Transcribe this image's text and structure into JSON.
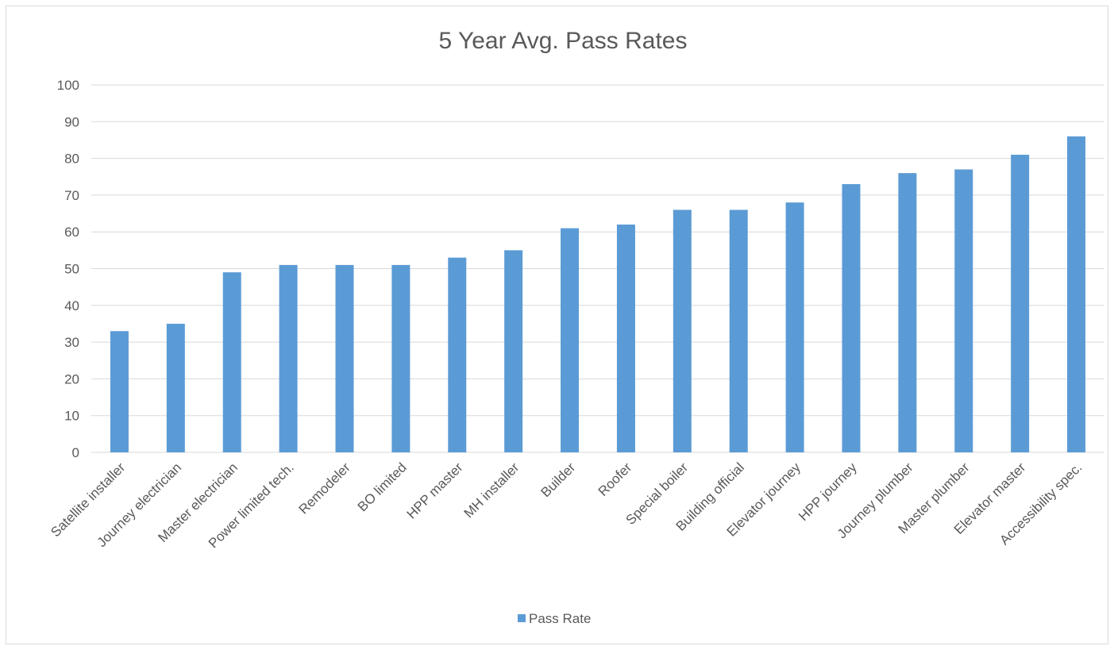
{
  "chart_data": {
    "type": "bar",
    "title": "5 Year Avg. Pass Rates",
    "xlabel": "",
    "ylabel": "",
    "ylim": [
      0,
      100
    ],
    "yticks": [
      0,
      10,
      20,
      30,
      40,
      50,
      60,
      70,
      80,
      90,
      100
    ],
    "grid": true,
    "legend_position": "bottom",
    "categories": [
      "Satellite installer",
      "Journey electrician",
      "Master electrician",
      "Power limited tech.",
      "Remodeler",
      "BO limited",
      "HPP master",
      "MH installer",
      "Builder",
      "Roofer",
      "Special boiler",
      "Building official",
      "Elevator journey",
      "HPP journey",
      "Journey plumber",
      "Master plumber",
      "Elevator master",
      "Accessibility spec."
    ],
    "series": [
      {
        "name": "Pass Rate",
        "color": "#5b9bd5",
        "values": [
          33,
          35,
          49,
          51,
          51,
          51,
          53,
          55,
          61,
          62,
          66,
          66,
          68,
          73,
          76,
          77,
          81,
          86
        ]
      }
    ]
  }
}
